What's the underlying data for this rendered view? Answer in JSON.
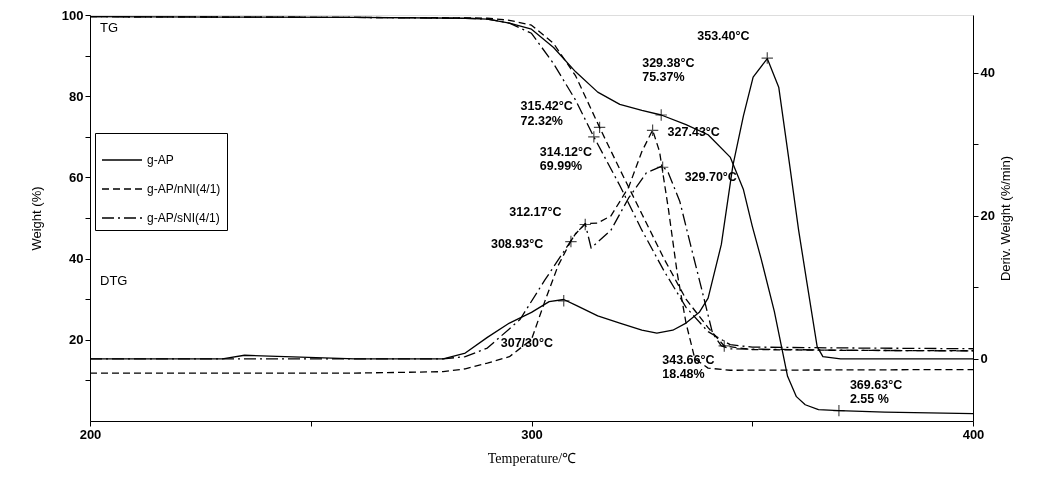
{
  "chart_data": {
    "type": "line",
    "xlabel": "Temperature/℃",
    "ylabel": "Weight (%)",
    "y2label": "Deriv. Weight (%/min)",
    "xlim": [
      200,
      400
    ],
    "xticks": [
      200,
      {
        "value": 250,
        "label": null
      },
      300,
      {
        "value": 350,
        "label": null
      },
      400
    ],
    "ylim": [
      0,
      100
    ],
    "yticks": [
      {
        "value": 10,
        "label": null
      },
      20,
      {
        "value": 30,
        "label": null
      },
      40,
      {
        "value": 50,
        "label": null
      },
      60,
      {
        "value": 70,
        "label": null
      },
      80,
      {
        "value": 90,
        "label": null
      },
      100
    ],
    "y2lim": [
      -8.7,
      48.1
    ],
    "y2ticks": [
      0,
      {
        "value": 10,
        "label": null
      },
      20,
      {
        "value": 30,
        "label": null
      },
      40
    ],
    "grid": false,
    "legend": "left",
    "series": [
      {
        "name": "g-AP",
        "color": "#000000",
        "line_style": "solid",
        "x": [
          200,
          230,
          260,
          285,
          290,
          295,
          300,
          305,
          310,
          315,
          320,
          325,
          329.38,
          335,
          340,
          345,
          348,
          350,
          352,
          355,
          358,
          360,
          362,
          365,
          369.63,
          380,
          400
        ],
        "values": [
          99.6,
          99.5,
          99.4,
          99.2,
          99,
          98,
          96.5,
          92,
          86,
          81,
          78,
          76.5,
          75.37,
          73,
          70.5,
          65,
          57,
          48,
          40,
          27,
          11,
          6,
          4,
          2.8,
          2.55,
          2.2,
          1.8
        ]
      },
      {
        "name": "g-AP/nNI(4/1)",
        "color": "#000000",
        "line_style": "dashed",
        "x": [
          200,
          230,
          260,
          285,
          290,
          295,
          300,
          305,
          310,
          315.42,
          320,
          325,
          330,
          335,
          340,
          343.66,
          350,
          370,
          400
        ],
        "values": [
          99.6,
          99.5,
          99.4,
          99.3,
          99.2,
          98.7,
          97.5,
          93,
          85,
          72.32,
          62,
          51,
          40,
          30,
          23,
          18.48,
          17.6,
          17.4,
          17.3
        ]
      },
      {
        "name": "g-AP/sNI(4/1)",
        "color": "#000000",
        "line_style": "dashed",
        "x": [
          200,
          230,
          260,
          285,
          290,
          295,
          300,
          305,
          310,
          314.12,
          320,
          325,
          330,
          335,
          340,
          345,
          350,
          370,
          400
        ],
        "values": [
          99.6,
          99.5,
          99.4,
          99.2,
          99,
          98,
          95.5,
          88,
          79,
          69.99,
          58,
          47,
          37,
          28,
          22,
          18.8,
          18.2,
          18,
          17.8
        ]
      },
      {
        "color": "#000000",
        "line_style": "solid",
        "axis": "y2",
        "x": [
          200,
          230,
          235,
          260,
          280,
          285,
          290,
          295,
          300,
          304,
          307.3,
          310,
          315,
          320,
          325,
          328.4,
          332,
          335,
          338,
          340,
          343,
          345.6,
          348,
          350.2,
          353.4,
          356,
          358.5,
          360.5,
          362.4,
          364.7,
          366,
          370,
          400
        ],
        "values": [
          0,
          0,
          0.5,
          0,
          0,
          0.8,
          3,
          5,
          6.5,
          8,
          8.3,
          7.5,
          6,
          5,
          4,
          3.6,
          4,
          5,
          6.5,
          8.5,
          16,
          27,
          34,
          39.4,
          42,
          38,
          27,
          18,
          10.6,
          1.7,
          0.3,
          0,
          0
        ]
      },
      {
        "color": "#000000",
        "line_style": "dashed",
        "axis": "y2",
        "x": [
          200,
          230,
          260,
          280,
          285,
          290,
          295,
          300,
          303,
          306,
          308.93,
          310,
          312.17,
          315,
          318,
          322,
          325,
          327.43,
          329,
          331,
          333,
          335,
          337,
          340,
          345,
          400
        ],
        "values": [
          -2,
          -2,
          -2,
          -1.8,
          -1.4,
          -0.6,
          0.3,
          2.7,
          8,
          13,
          16.5,
          17.5,
          18.9,
          19,
          20,
          24,
          29,
          32,
          29,
          21,
          12,
          5,
          0,
          -1.3,
          -1.6,
          -1.5
        ]
      },
      {
        "color": "#000000",
        "line_style": "dashed",
        "axis": "y2",
        "x": [
          200,
          230,
          260,
          280,
          285,
          290,
          297.4,
          303,
          308.93,
          310,
          312.17,
          313.5,
          318,
          322,
          326,
          329.7,
          331,
          333.6,
          336,
          338.2,
          341,
          343,
          345,
          370,
          400
        ],
        "values": [
          0,
          0,
          0,
          0,
          0.3,
          1.5,
          5.5,
          11,
          16.5,
          17.5,
          18.9,
          15.5,
          18,
          22.5,
          26,
          27,
          26,
          22,
          16,
          10.6,
          3.6,
          1.8,
          1.4,
          1.2,
          1.1
        ]
      }
    ],
    "annotations": [
      "TG",
      "DTG",
      {
        "text": "353.40°C",
        "x": 353.4,
        "y": 89.4
      },
      {
        "text": "329.38°C\n75.37%",
        "x": 329.38,
        "y": 75.37
      },
      {
        "text": "315.42°C\n72.32%",
        "x": 315.42,
        "y": 72.32
      },
      {
        "text": "327.43°C",
        "x": 327.43,
        "y": 71.6
      },
      {
        "text": "314.12°C\n69.99%",
        "x": 314.12,
        "y": 69.99
      },
      {
        "text": "312.17°C",
        "x": 312.17,
        "y": 48.4
      },
      {
        "text": "308.93°C",
        "x": 308.93,
        "y": 44.2
      },
      {
        "text": "329.70°C",
        "x": 329.7,
        "y": 62.5
      },
      {
        "text": "307/30°C",
        "x": 307.3,
        "y": 29.6
      },
      {
        "text": "343.66°C\n18.48%",
        "x": 343.66,
        "y": 18.48
      },
      {
        "text": "369.63°C\n2.55 %",
        "x": 369.63,
        "y": 2.55
      }
    ]
  }
}
